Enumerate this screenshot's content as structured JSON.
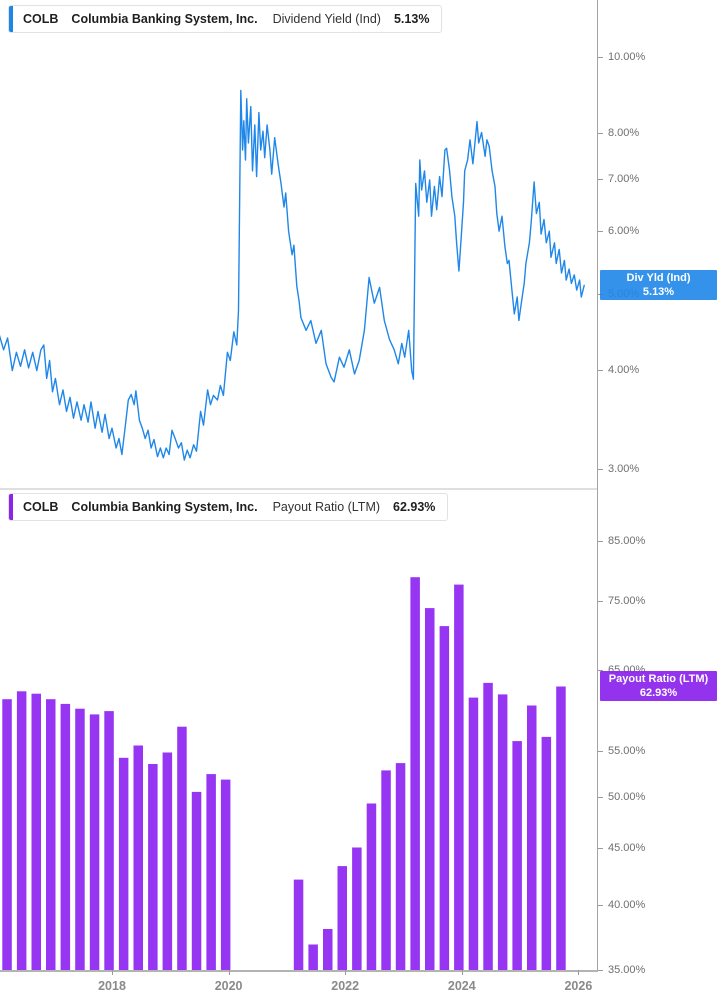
{
  "panels": [
    {
      "header": {
        "ticker": "COLB",
        "company": "Columbia Banking System, Inc.",
        "metric": "Dividend Yield (Ind)",
        "value": "5.13%"
      },
      "badge": {
        "label": "Div Yld (Ind)",
        "value": "5.13%"
      },
      "accent": "#1e86e8"
    },
    {
      "header": {
        "ticker": "COLB",
        "company": "Columbia Banking System, Inc.",
        "metric": "Payout Ratio (LTM)",
        "value": "62.93%"
      },
      "badge": {
        "label": "Payout Ratio (LTM)",
        "value": "62.93%"
      },
      "accent": "#8c24ec"
    }
  ],
  "x_axis": {
    "ticks": [
      {
        "year": 2018,
        "label": "2018"
      },
      {
        "year": 2020,
        "label": "2020"
      },
      {
        "year": 2022,
        "label": "2022"
      },
      {
        "year": 2024,
        "label": "2024"
      },
      {
        "year": 2026,
        "label": "2026"
      }
    ]
  },
  "chart_data": [
    {
      "type": "line",
      "name": "Div Yld (Ind)",
      "title": "COLB Columbia Banking System, Inc. Dividend Yield (Ind)",
      "color": "#1f87e9",
      "y_scale": "log",
      "legend_position": "right-badge",
      "grid": false,
      "last_value": 5.13,
      "y_ticks": [
        {
          "v": 10,
          "label": "10.00%"
        },
        {
          "v": 8,
          "label": "8.00%"
        },
        {
          "v": 7,
          "label": "7.00%"
        },
        {
          "v": 6,
          "label": "6.00%"
        },
        {
          "v": 5,
          "label": "5.00%"
        },
        {
          "v": 4,
          "label": "4.00%"
        },
        {
          "v": 3,
          "label": "3.00%"
        }
      ],
      "points": [
        [
          2016.07,
          4.43
        ],
        [
          2016.14,
          4.25
        ],
        [
          2016.21,
          4.4
        ],
        [
          2016.29,
          4.0
        ],
        [
          2016.36,
          4.22
        ],
        [
          2016.43,
          4.05
        ],
        [
          2016.5,
          4.25
        ],
        [
          2016.57,
          4.03
        ],
        [
          2016.64,
          4.22
        ],
        [
          2016.71,
          4.0
        ],
        [
          2016.78,
          4.25
        ],
        [
          2016.83,
          4.31
        ],
        [
          2016.88,
          3.91
        ],
        [
          2016.93,
          4.12
        ],
        [
          2016.98,
          3.76
        ],
        [
          2017.03,
          3.91
        ],
        [
          2017.1,
          3.62
        ],
        [
          2017.16,
          3.78
        ],
        [
          2017.22,
          3.55
        ],
        [
          2017.28,
          3.7
        ],
        [
          2017.34,
          3.48
        ],
        [
          2017.4,
          3.65
        ],
        [
          2017.47,
          3.46
        ],
        [
          2017.52,
          3.62
        ],
        [
          2017.59,
          3.44
        ],
        [
          2017.64,
          3.65
        ],
        [
          2017.71,
          3.38
        ],
        [
          2017.76,
          3.55
        ],
        [
          2017.83,
          3.34
        ],
        [
          2017.88,
          3.52
        ],
        [
          2017.95,
          3.28
        ],
        [
          2018.0,
          3.38
        ],
        [
          2018.07,
          3.19
        ],
        [
          2018.12,
          3.28
        ],
        [
          2018.17,
          3.13
        ],
        [
          2018.22,
          3.36
        ],
        [
          2018.28,
          3.67
        ],
        [
          2018.33,
          3.73
        ],
        [
          2018.38,
          3.62
        ],
        [
          2018.41,
          3.77
        ],
        [
          2018.47,
          3.46
        ],
        [
          2018.52,
          3.38
        ],
        [
          2018.57,
          3.28
        ],
        [
          2018.62,
          3.36
        ],
        [
          2018.67,
          3.19
        ],
        [
          2018.72,
          3.27
        ],
        [
          2018.78,
          3.11
        ],
        [
          2018.83,
          3.19
        ],
        [
          2018.88,
          3.1
        ],
        [
          2018.93,
          3.19
        ],
        [
          2018.98,
          3.13
        ],
        [
          2019.03,
          3.36
        ],
        [
          2019.09,
          3.27
        ],
        [
          2019.14,
          3.19
        ],
        [
          2019.19,
          3.24
        ],
        [
          2019.24,
          3.08
        ],
        [
          2019.29,
          3.17
        ],
        [
          2019.34,
          3.1
        ],
        [
          2019.4,
          3.22
        ],
        [
          2019.45,
          3.16
        ],
        [
          2019.52,
          3.55
        ],
        [
          2019.57,
          3.41
        ],
        [
          2019.64,
          3.78
        ],
        [
          2019.69,
          3.62
        ],
        [
          2019.74,
          3.72
        ],
        [
          2019.81,
          3.67
        ],
        [
          2019.86,
          3.83
        ],
        [
          2019.91,
          3.72
        ],
        [
          2019.98,
          4.22
        ],
        [
          2020.03,
          4.12
        ],
        [
          2020.09,
          4.48
        ],
        [
          2020.14,
          4.31
        ],
        [
          2020.17,
          4.77
        ],
        [
          2020.21,
          9.07
        ],
        [
          2020.24,
          7.62
        ],
        [
          2020.26,
          8.3
        ],
        [
          2020.29,
          7.4
        ],
        [
          2020.31,
          8.85
        ],
        [
          2020.34,
          7.78
        ],
        [
          2020.38,
          8.65
        ],
        [
          2020.41,
          7.17
        ],
        [
          2020.45,
          8.2
        ],
        [
          2020.48,
          7.05
        ],
        [
          2020.52,
          8.5
        ],
        [
          2020.55,
          7.62
        ],
        [
          2020.59,
          8.05
        ],
        [
          2020.62,
          7.45
        ],
        [
          2020.66,
          8.2
        ],
        [
          2020.71,
          7.6
        ],
        [
          2020.74,
          7.1
        ],
        [
          2020.79,
          7.9
        ],
        [
          2020.85,
          7.3
        ],
        [
          2020.9,
          6.9
        ],
        [
          2020.95,
          6.45
        ],
        [
          2020.98,
          6.72
        ],
        [
          2021.03,
          6.01
        ],
        [
          2021.09,
          5.61
        ],
        [
          2021.12,
          5.77
        ],
        [
          2021.17,
          5.12
        ],
        [
          2021.21,
          4.9
        ],
        [
          2021.24,
          4.67
        ],
        [
          2021.33,
          4.5
        ],
        [
          2021.41,
          4.63
        ],
        [
          2021.5,
          4.33
        ],
        [
          2021.59,
          4.5
        ],
        [
          2021.67,
          4.08
        ],
        [
          2021.76,
          3.92
        ],
        [
          2021.81,
          3.87
        ],
        [
          2021.9,
          4.16
        ],
        [
          2021.98,
          4.04
        ],
        [
          2022.07,
          4.25
        ],
        [
          2022.16,
          3.96
        ],
        [
          2022.24,
          4.12
        ],
        [
          2022.33,
          4.5
        ],
        [
          2022.41,
          5.25
        ],
        [
          2022.5,
          4.87
        ],
        [
          2022.59,
          5.1
        ],
        [
          2022.67,
          4.63
        ],
        [
          2022.76,
          4.38
        ],
        [
          2022.84,
          4.25
        ],
        [
          2022.91,
          4.08
        ],
        [
          2022.97,
          4.33
        ],
        [
          2023.02,
          4.16
        ],
        [
          2023.09,
          4.5
        ],
        [
          2023.14,
          4.0
        ],
        [
          2023.17,
          3.9
        ],
        [
          2023.21,
          6.91
        ],
        [
          2023.26,
          6.28
        ],
        [
          2023.28,
          7.4
        ],
        [
          2023.31,
          6.78
        ],
        [
          2023.36,
          7.17
        ],
        [
          2023.4,
          6.54
        ],
        [
          2023.45,
          6.98
        ],
        [
          2023.48,
          6.28
        ],
        [
          2023.53,
          6.85
        ],
        [
          2023.57,
          6.4
        ],
        [
          2023.62,
          7.05
        ],
        [
          2023.66,
          6.65
        ],
        [
          2023.71,
          7.62
        ],
        [
          2023.74,
          7.66
        ],
        [
          2023.79,
          7.17
        ],
        [
          2023.83,
          6.65
        ],
        [
          2023.88,
          6.28
        ],
        [
          2023.91,
          5.81
        ],
        [
          2023.95,
          5.35
        ],
        [
          2023.98,
          5.75
        ],
        [
          2024.03,
          6.54
        ],
        [
          2024.05,
          7.17
        ],
        [
          2024.1,
          7.4
        ],
        [
          2024.14,
          7.85
        ],
        [
          2024.19,
          7.32
        ],
        [
          2024.22,
          7.7
        ],
        [
          2024.26,
          8.28
        ],
        [
          2024.29,
          7.78
        ],
        [
          2024.34,
          8.02
        ],
        [
          2024.4,
          7.48
        ],
        [
          2024.43,
          7.85
        ],
        [
          2024.47,
          7.7
        ],
        [
          2024.52,
          7.17
        ],
        [
          2024.57,
          6.85
        ],
        [
          2024.6,
          6.33
        ],
        [
          2024.64,
          6.01
        ],
        [
          2024.69,
          6.28
        ],
        [
          2024.74,
          5.75
        ],
        [
          2024.78,
          5.47
        ],
        [
          2024.81,
          5.52
        ],
        [
          2024.86,
          5.06
        ],
        [
          2024.9,
          4.72
        ],
        [
          2024.95,
          4.96
        ],
        [
          2024.98,
          4.63
        ],
        [
          2025.02,
          4.87
        ],
        [
          2025.07,
          5.16
        ],
        [
          2025.1,
          5.47
        ],
        [
          2025.16,
          5.81
        ],
        [
          2025.19,
          6.17
        ],
        [
          2025.24,
          6.94
        ],
        [
          2025.28,
          6.33
        ],
        [
          2025.33,
          6.54
        ],
        [
          2025.36,
          5.96
        ],
        [
          2025.41,
          6.22
        ],
        [
          2025.45,
          5.81
        ],
        [
          2025.5,
          6.01
        ],
        [
          2025.53,
          5.57
        ],
        [
          2025.59,
          5.81
        ],
        [
          2025.62,
          5.47
        ],
        [
          2025.67,
          5.7
        ],
        [
          2025.71,
          5.32
        ],
        [
          2025.76,
          5.52
        ],
        [
          2025.79,
          5.21
        ],
        [
          2025.84,
          5.38
        ],
        [
          2025.88,
          5.16
        ],
        [
          2025.93,
          5.29
        ],
        [
          2025.97,
          5.06
        ],
        [
          2026.02,
          5.21
        ],
        [
          2026.05,
          4.96
        ],
        [
          2026.1,
          5.13
        ]
      ]
    },
    {
      "type": "bar",
      "name": "Payout Ratio (LTM)",
      "title": "COLB Columbia Banking System, Inc. Payout Ratio (LTM)",
      "color": "#9636f3",
      "y_scale": "log",
      "legend_position": "right-badge",
      "grid": false,
      "last_value": 62.93,
      "y_ticks": [
        {
          "v": 85,
          "label": "85.00%"
        },
        {
          "v": 75,
          "label": "75.00%"
        },
        {
          "v": 65,
          "label": "65.00%"
        },
        {
          "v": 55,
          "label": "55.00%"
        },
        {
          "v": 50,
          "label": "50.00%"
        },
        {
          "v": 45,
          "label": "45.00%"
        },
        {
          "v": 40,
          "label": "40.00%"
        },
        {
          "v": 35,
          "label": "35.00%"
        }
      ],
      "categories": [
        "Q1 2016",
        "Q2 2016",
        "Q3 2016",
        "Q4 2016",
        "Q1 2017",
        "Q2 2017",
        "Q3 2017",
        "Q4 2017",
        "Q1 2018",
        "Q2 2018",
        "Q3 2018",
        "Q4 2018",
        "Q1 2019",
        "Q2 2019",
        "Q3 2019",
        "Q4 2019",
        "Q1 2020",
        "Q2 2020",
        "Q3 2020",
        "Q4 2020",
        "Q1 2021",
        "Q2 2021",
        "Q3 2021",
        "Q4 2021",
        "Q1 2022",
        "Q2 2022",
        "Q3 2022",
        "Q4 2022",
        "Q1 2023",
        "Q2 2023",
        "Q3 2023",
        "Q4 2023",
        "Q1 2024",
        "Q2 2024",
        "Q3 2024",
        "Q4 2024",
        "Q1 2025",
        "Q2 2025",
        "Q3 2025"
      ],
      "values": [
        61.3,
        62.3,
        62.0,
        61.3,
        60.7,
        60.1,
        59.4,
        59.8,
        54.3,
        55.7,
        53.6,
        54.9,
        57.9,
        50.6,
        52.5,
        51.9,
        null,
        null,
        null,
        null,
        42.2,
        36.9,
        38.1,
        43.4,
        45.1,
        49.4,
        52.9,
        53.7,
        78.9,
        74.0,
        71.3,
        77.7,
        61.5,
        63.4,
        61.9,
        56.2,
        60.5,
        56.7,
        62.93
      ]
    }
  ]
}
